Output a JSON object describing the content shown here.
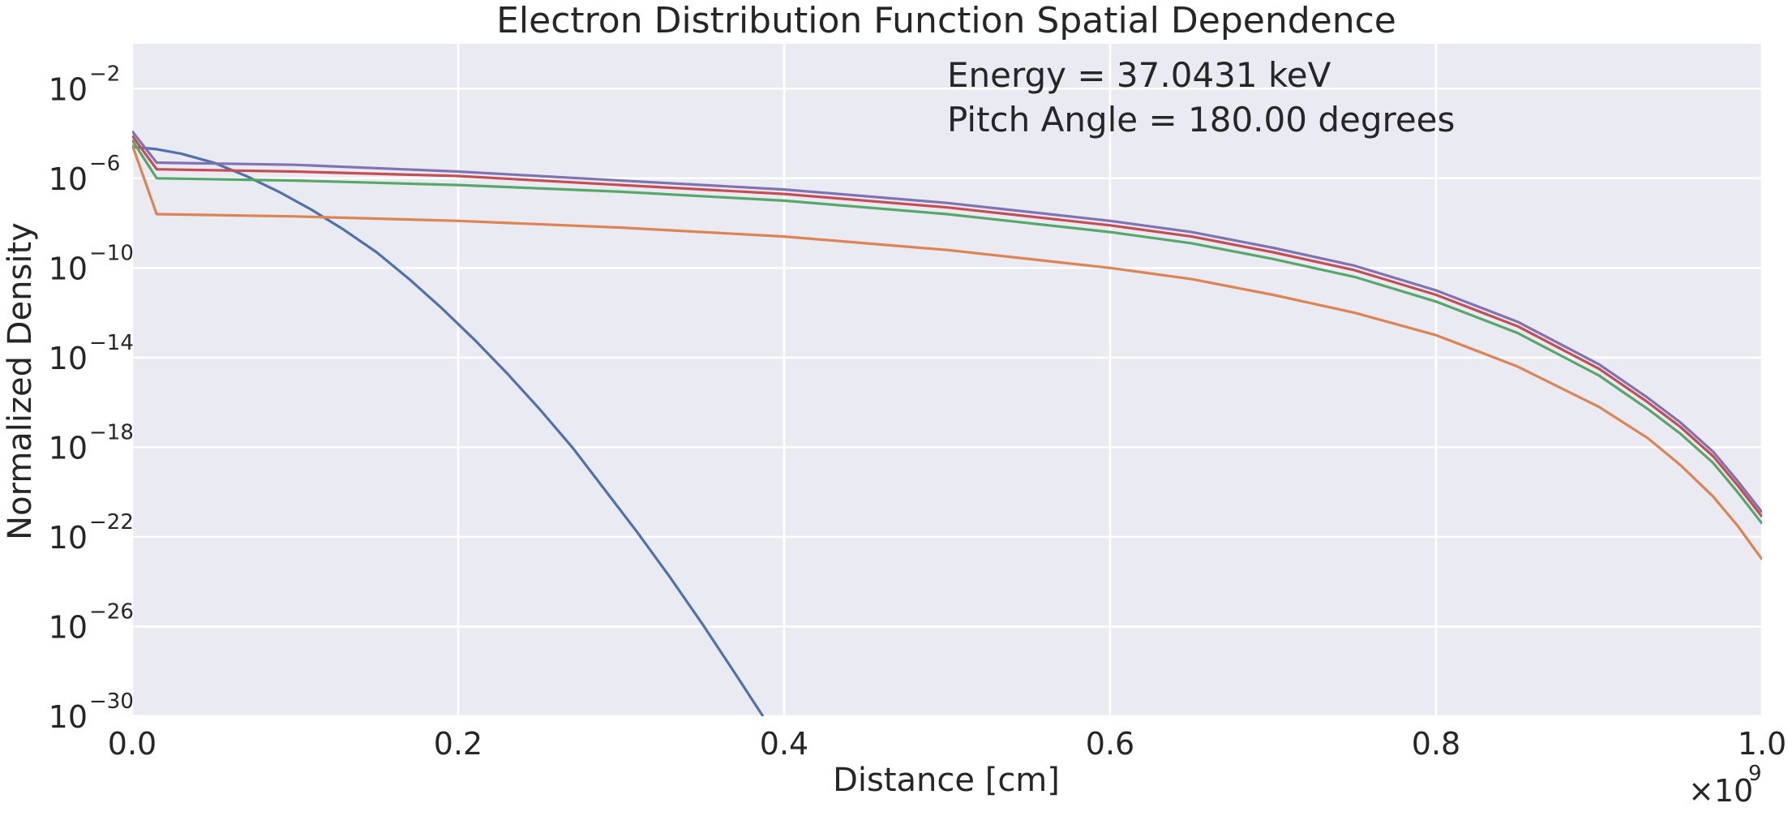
{
  "chart_data": {
    "type": "line",
    "title": "Electron Distribution Function Spatial Dependence",
    "xlabel": "Distance [cm]",
    "ylabel": "Normalized Density",
    "x_offset_label": "×10",
    "x_offset_exp": "9",
    "xlim": [
      0,
      1000000000
    ],
    "ylim_exp": [
      -30,
      0
    ],
    "yscale": "log",
    "grid": true,
    "annotations": [
      "Energy = 37.0431 keV",
      "Pitch Angle = 180.00 degrees"
    ],
    "x_ticks": [
      {
        "value": 0,
        "label": "0.0"
      },
      {
        "value": 200000000,
        "label": "0.2"
      },
      {
        "value": 400000000,
        "label": "0.4"
      },
      {
        "value": 600000000,
        "label": "0.6"
      },
      {
        "value": 800000000,
        "label": "0.8"
      },
      {
        "value": 1000000000,
        "label": "1.0"
      }
    ],
    "y_ticks": [
      {
        "exp": -2,
        "label": "−2"
      },
      {
        "exp": -6,
        "label": "−6"
      },
      {
        "exp": -10,
        "label": "−10"
      },
      {
        "exp": -14,
        "label": "−14"
      },
      {
        "exp": -18,
        "label": "−18"
      },
      {
        "exp": -22,
        "label": "−22"
      },
      {
        "exp": -26,
        "label": "−26"
      },
      {
        "exp": -30,
        "label": "−30"
      }
    ],
    "y_tick_base": "10",
    "series": [
      {
        "color": "#4c72b0",
        "x": [
          0,
          15000000,
          30000000,
          50000000,
          70000000,
          90000000,
          110000000,
          130000000,
          150000000,
          170000000,
          190000000,
          210000000,
          230000000,
          250000000,
          270000000,
          290000000,
          310000000,
          330000000,
          350000000,
          370000000,
          387000000
        ],
        "y_exp": [
          -4.6,
          -4.7,
          -4.9,
          -5.3,
          -5.9,
          -6.6,
          -7.4,
          -8.3,
          -9.3,
          -10.5,
          -11.8,
          -13.2,
          -14.7,
          -16.3,
          -18.0,
          -19.9,
          -21.8,
          -23.8,
          -25.9,
          -28.1,
          -30.0
        ]
      },
      {
        "color": "#dd8452",
        "x": [
          0,
          15000000,
          100000000,
          200000000,
          300000000,
          400000000,
          500000000,
          600000000,
          650000000,
          700000000,
          750000000,
          800000000,
          850000000,
          900000000,
          930000000,
          950000000,
          970000000,
          985000000,
          1000000000
        ],
        "y_exp": [
          -4.5,
          -7.6,
          -7.7,
          -7.9,
          -8.2,
          -8.6,
          -9.2,
          -10.0,
          -10.5,
          -11.2,
          -12.0,
          -13.0,
          -14.4,
          -16.2,
          -17.6,
          -18.8,
          -20.2,
          -21.5,
          -23.0
        ]
      },
      {
        "color": "#55a868",
        "x": [
          0,
          15000000,
          100000000,
          200000000,
          300000000,
          400000000,
          500000000,
          600000000,
          650000000,
          700000000,
          750000000,
          800000000,
          850000000,
          900000000,
          930000000,
          950000000,
          970000000,
          985000000,
          1000000000
        ],
        "y_exp": [
          -4.3,
          -6.0,
          -6.1,
          -6.3,
          -6.6,
          -7.0,
          -7.6,
          -8.4,
          -8.9,
          -9.6,
          -10.4,
          -11.5,
          -12.9,
          -14.8,
          -16.3,
          -17.4,
          -18.7,
          -20.0,
          -21.4
        ]
      },
      {
        "color": "#c44e52",
        "x": [
          0,
          15000000,
          100000000,
          200000000,
          300000000,
          400000000,
          500000000,
          600000000,
          650000000,
          700000000,
          750000000,
          800000000,
          850000000,
          900000000,
          930000000,
          950000000,
          970000000,
          985000000,
          1000000000
        ],
        "y_exp": [
          -4.1,
          -5.6,
          -5.7,
          -5.9,
          -6.3,
          -6.7,
          -7.3,
          -8.1,
          -8.6,
          -9.3,
          -10.1,
          -11.2,
          -12.6,
          -14.5,
          -16.0,
          -17.1,
          -18.4,
          -19.7,
          -21.1
        ]
      },
      {
        "color": "#8172b3",
        "x": [
          0,
          15000000,
          100000000,
          200000000,
          300000000,
          400000000,
          500000000,
          600000000,
          650000000,
          700000000,
          750000000,
          800000000,
          850000000,
          900000000,
          930000000,
          950000000,
          970000000,
          985000000,
          1000000000
        ],
        "y_exp": [
          -3.9,
          -5.3,
          -5.4,
          -5.7,
          -6.1,
          -6.5,
          -7.1,
          -7.9,
          -8.4,
          -9.1,
          -9.9,
          -11.0,
          -12.4,
          -14.3,
          -15.8,
          -16.9,
          -18.2,
          -19.5,
          -20.9
        ]
      }
    ]
  },
  "style": {
    "plot_bg": "#eaeaf2",
    "grid_color": "#ffffff",
    "text_color": "#262626"
  }
}
